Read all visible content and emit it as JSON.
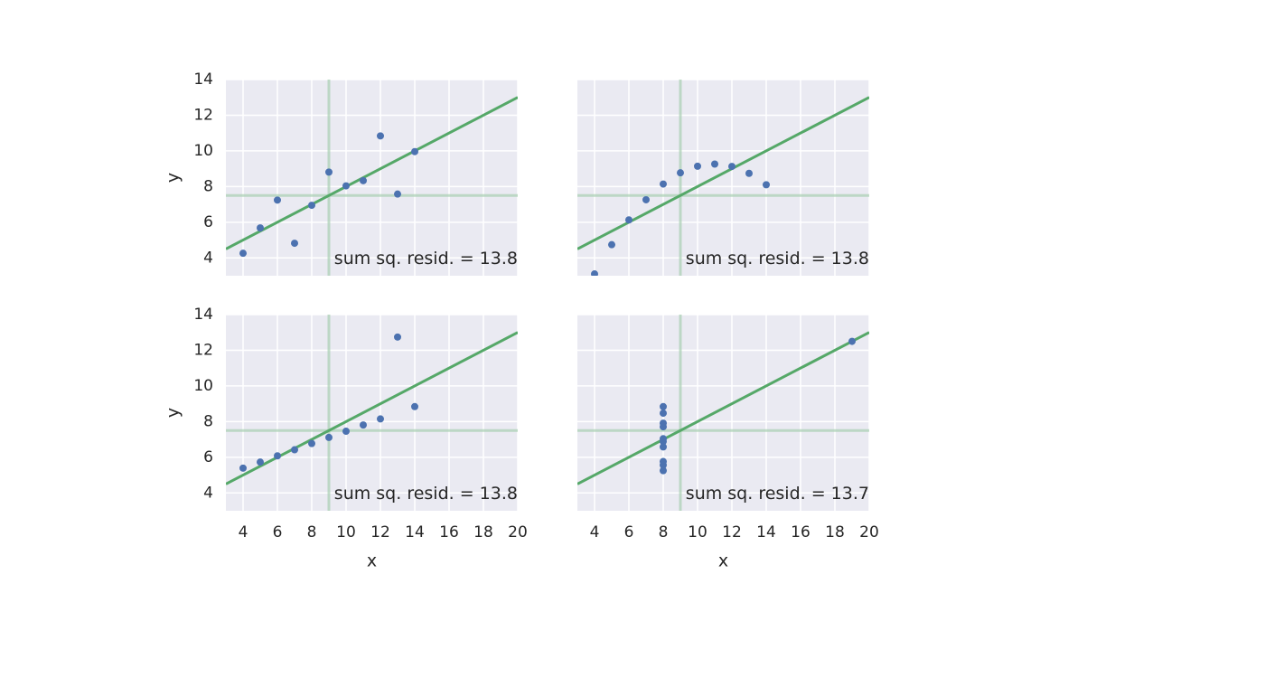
{
  "chart_data": [
    {
      "type": "scatter",
      "panel": "top-left",
      "x": [
        10,
        8,
        13,
        9,
        11,
        14,
        6,
        4,
        12,
        7,
        5
      ],
      "y": [
        8.04,
        6.95,
        7.58,
        8.81,
        8.33,
        9.96,
        7.24,
        4.26,
        10.84,
        4.82,
        5.68
      ],
      "fit": {
        "intercept": 3,
        "slope": 0.5
      },
      "mean_x": 9,
      "mean_y": 7.5,
      "annotation": "sum sq. resid. = 13.8",
      "xlabel": "",
      "ylabel": "y",
      "xlim": [
        3,
        20
      ],
      "ylim": [
        3,
        14
      ],
      "xticks": [],
      "yticks": [
        "4",
        "6",
        "8",
        "10",
        "12",
        "14"
      ]
    },
    {
      "type": "scatter",
      "panel": "top-right",
      "x": [
        10,
        8,
        13,
        9,
        11,
        14,
        6,
        4,
        12,
        7,
        5
      ],
      "y": [
        9.14,
        8.14,
        8.74,
        8.77,
        9.26,
        8.1,
        6.13,
        3.1,
        9.13,
        7.26,
        4.74
      ],
      "fit": {
        "intercept": 3,
        "slope": 0.5
      },
      "mean_x": 9,
      "mean_y": 7.5,
      "annotation": "sum sq. resid. = 13.8",
      "xlabel": "",
      "ylabel": "",
      "xlim": [
        3,
        20
      ],
      "ylim": [
        3,
        14
      ],
      "xticks": [],
      "yticks": []
    },
    {
      "type": "scatter",
      "panel": "bottom-left",
      "x": [
        10,
        8,
        13,
        9,
        11,
        14,
        6,
        4,
        12,
        7,
        5
      ],
      "y": [
        7.46,
        6.77,
        12.74,
        7.11,
        7.81,
        8.84,
        6.08,
        5.39,
        8.15,
        6.42,
        5.73
      ],
      "fit": {
        "intercept": 3,
        "slope": 0.5
      },
      "mean_x": 9,
      "mean_y": 7.5,
      "annotation": "sum sq. resid. = 13.8",
      "xlabel": "x",
      "ylabel": "y",
      "xlim": [
        3,
        20
      ],
      "ylim": [
        3,
        14
      ],
      "xticks": [
        "4",
        "6",
        "8",
        "10",
        "12",
        "14",
        "16",
        "18",
        "20"
      ],
      "yticks": [
        "4",
        "6",
        "8",
        "10",
        "12",
        "14"
      ]
    },
    {
      "type": "scatter",
      "panel": "bottom-right",
      "x": [
        8,
        8,
        8,
        8,
        8,
        8,
        8,
        19,
        8,
        8,
        8
      ],
      "y": [
        6.58,
        5.76,
        7.71,
        8.84,
        8.47,
        7.04,
        5.25,
        12.5,
        5.56,
        7.91,
        6.89
      ],
      "fit": {
        "intercept": 3,
        "slope": 0.5
      },
      "mean_x": 9,
      "mean_y": 7.5,
      "annotation": "sum sq. resid. = 13.7",
      "xlabel": "x",
      "ylabel": "",
      "xlim": [
        3,
        20
      ],
      "ylim": [
        3,
        14
      ],
      "xticks": [
        "4",
        "6",
        "8",
        "10",
        "12",
        "14",
        "16",
        "18",
        "20"
      ],
      "yticks": []
    }
  ],
  "colors": {
    "panel_bg": "#EAEAF2",
    "grid": "#FFFFFF",
    "points": "#4C72B0",
    "fit_line": "#55A868",
    "mean_lines": "#A8CFB2",
    "text": "#262626"
  }
}
